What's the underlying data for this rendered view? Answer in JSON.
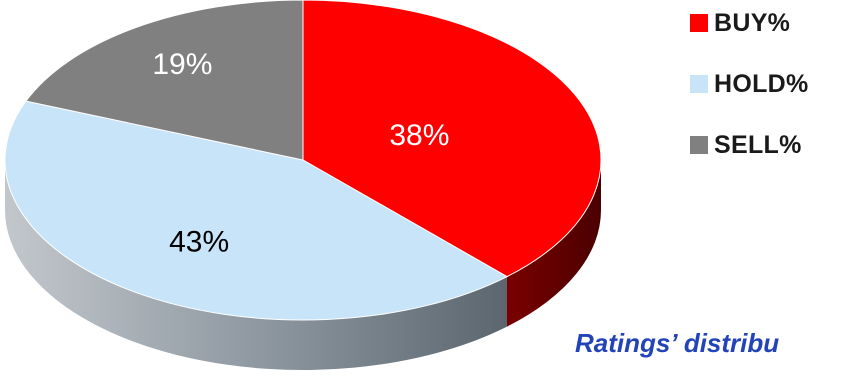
{
  "chart_data": {
    "type": "pie",
    "style": "3d",
    "categories": [
      "BUY%",
      "HOLD%",
      "SELL%"
    ],
    "values": [
      38,
      43,
      19
    ],
    "data_labels": [
      "38%",
      "43%",
      "19%"
    ],
    "colors": {
      "BUY%": "#ff0000",
      "HOLD%": "#c8e4f8",
      "SELL%": "#808080"
    },
    "legend": {
      "placement": "top-right",
      "entries": [
        "BUY%",
        "HOLD%",
        "SELL%"
      ]
    },
    "caption": "Ratings’ distribu"
  }
}
